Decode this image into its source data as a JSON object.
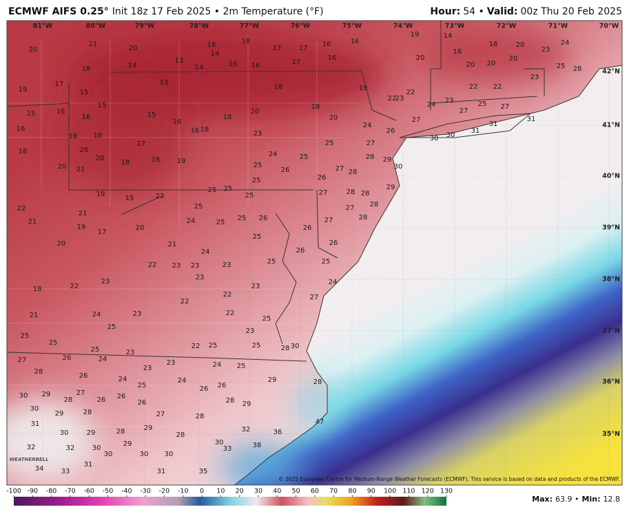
{
  "header": {
    "title_bold": "ECMWF AIFS 0.25°",
    "title_rest": "Init 18z 17 Feb 2025 • 2m Temperature (°F)",
    "hour_label": "Hour:",
    "hour_value": "54 •",
    "valid_label": "Valid:",
    "valid_value": "00z Thu 20 Feb 2025"
  },
  "map": {
    "lon_labels": [
      "81°W",
      "80°W",
      "79°W",
      "78°W",
      "77°W",
      "76°W",
      "75°W",
      "74°W",
      "73°W",
      "72°W",
      "71°W",
      "70°W"
    ],
    "lat_labels": [
      "42°N",
      "41°N",
      "40°N",
      "39°N",
      "38°N",
      "37°N",
      "36°N",
      "35°N"
    ],
    "station_values": [
      20,
      21,
      20,
      18,
      19,
      17,
      15,
      15,
      16,
      15,
      16,
      16,
      18,
      18,
      18,
      20,
      20,
      20,
      17,
      18,
      16,
      19,
      21,
      15,
      16,
      16,
      18,
      18,
      16,
      14,
      18,
      16,
      17,
      17,
      16,
      16,
      19,
      14,
      16,
      18,
      20,
      23,
      24,
      14,
      13,
      14,
      16,
      17,
      16,
      20,
      20,
      20,
      20,
      13,
      18,
      19,
      22,
      23,
      22,
      22,
      22,
      23,
      25,
      28,
      20,
      18,
      20,
      23,
      24,
      25,
      25,
      26,
      25,
      25,
      27,
      26,
      24,
      26,
      27,
      28,
      28,
      29,
      30,
      24,
      23,
      27,
      25,
      27,
      31,
      31,
      31,
      30,
      30,
      27,
      27,
      28,
      28,
      29,
      27,
      28,
      27,
      28,
      26,
      26,
      25,
      24,
      27,
      25,
      25,
      25,
      19,
      15,
      23,
      25,
      24,
      25,
      25,
      26,
      25,
      26,
      25,
      22,
      21,
      21,
      17,
      20,
      19,
      20,
      21,
      24,
      22,
      23,
      23,
      23,
      23,
      23,
      23,
      22,
      18,
      22,
      21,
      24,
      23,
      22,
      22,
      25,
      25,
      25,
      25,
      25,
      23,
      22,
      25,
      23,
      25,
      30,
      28,
      27,
      26,
      24,
      23,
      23,
      24,
      25,
      28,
      26,
      24,
      25,
      24,
      26,
      26,
      29,
      28,
      30,
      29,
      28,
      27,
      26,
      26,
      26,
      28,
      29,
      30,
      29,
      28,
      27,
      28,
      31,
      30,
      29,
      28,
      29,
      28,
      47,
      32,
      36,
      32,
      32,
      30,
      30,
      29,
      30,
      30,
      30,
      33,
      38,
      31,
      34,
      33,
      31,
      35
    ],
    "logo": "WEATHERBELL",
    "copyright": "© 2025 European Centre for Medium-Range Weather Forecasts (ECMWF). This service is based on data and products of the ECMWF."
  },
  "colorbar": {
    "ticks": [
      -100,
      -90,
      -80,
      -70,
      -60,
      -50,
      -40,
      -30,
      -20,
      -10,
      0,
      10,
      20,
      30,
      40,
      50,
      60,
      70,
      80,
      90,
      100,
      110,
      120,
      130
    ]
  },
  "footer": {
    "max_label": "Max:",
    "max_value": "63.9 •",
    "min_label": "Min:",
    "min_value": "12.8"
  }
}
